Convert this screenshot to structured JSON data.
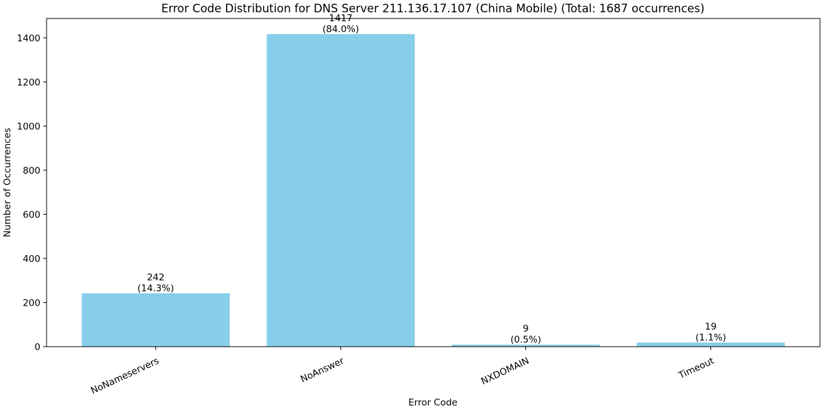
{
  "chart_data": {
    "type": "bar",
    "title": "Error Code Distribution for DNS Server 211.136.17.107 (China Mobile) (Total: 1687 occurrences)",
    "xlabel": "Error Code",
    "ylabel": "Number of Occurrences",
    "categories": [
      "NoNameservers",
      "NoAnswer",
      "NXDOMAIN",
      "Timeout"
    ],
    "values": [
      242,
      1417,
      9,
      19
    ],
    "data_labels": [
      [
        "242",
        "(14.3%)"
      ],
      [
        "1417",
        "(84.0%)"
      ],
      [
        "9",
        "(0.5%)"
      ],
      [
        "19",
        "(1.1%)"
      ]
    ],
    "ylim": [
      0,
      1487.85
    ],
    "yticks": [
      0,
      200,
      400,
      600,
      800,
      1000,
      1200,
      1400
    ],
    "xtick_rotation_deg": 25,
    "bar_color": "#87CEEB",
    "grid": false,
    "legend": "none"
  }
}
